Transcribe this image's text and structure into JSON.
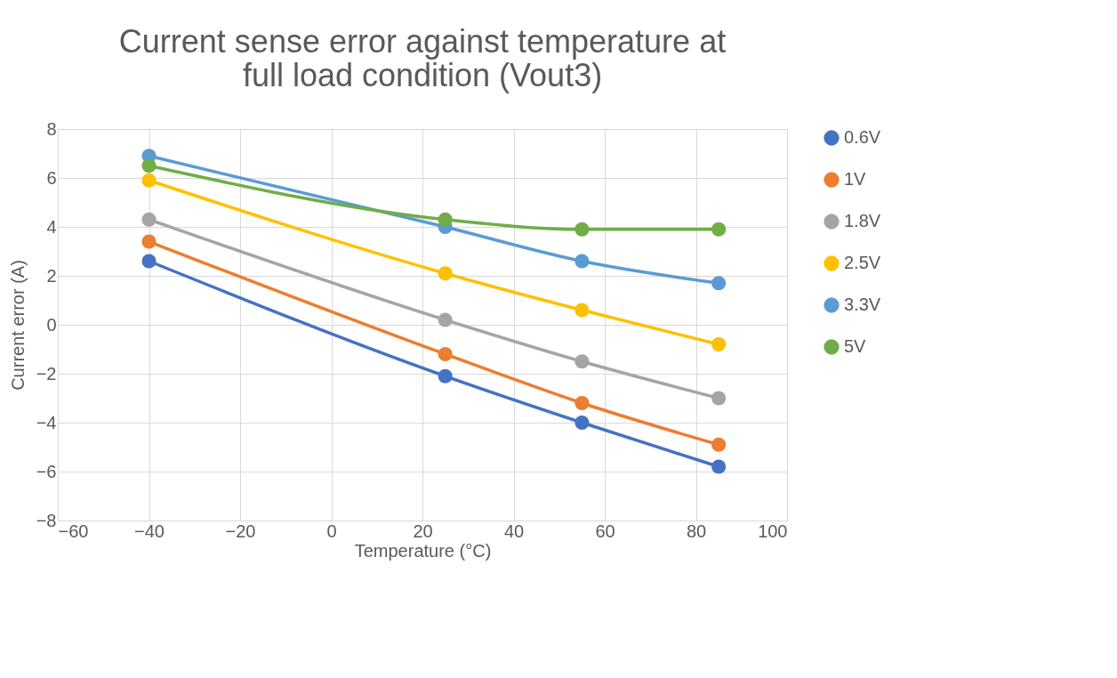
{
  "chart_data": {
    "type": "line",
    "title": [
      "Current sense error against temperature at",
      "full load condition (Vout3)"
    ],
    "xlabel": "Temperature (°C)",
    "ylabel": "Current error (A)",
    "x": [
      -40,
      25,
      55,
      85
    ],
    "series": [
      {
        "name": "0.6V",
        "color": "#4472c4",
        "values": [
          2.6,
          -2.1,
          -4.0,
          -5.8
        ]
      },
      {
        "name": "1V",
        "color": "#ed7d31",
        "values": [
          3.4,
          -1.2,
          -3.2,
          -4.9
        ]
      },
      {
        "name": "1.8V",
        "color": "#a5a5a5",
        "values": [
          4.3,
          0.2,
          -1.5,
          -3.0
        ]
      },
      {
        "name": "2.5V",
        "color": "#ffc000",
        "values": [
          5.9,
          2.1,
          0.6,
          -0.8
        ]
      },
      {
        "name": "3.3V",
        "color": "#5b9bd5",
        "values": [
          6.9,
          4.0,
          2.6,
          1.7
        ]
      },
      {
        "name": "5V",
        "color": "#70ad47",
        "values": [
          6.5,
          4.3,
          3.9,
          3.9
        ]
      }
    ],
    "xlim": [
      -60,
      100
    ],
    "xticks": [
      -60,
      -40,
      -20,
      0,
      20,
      40,
      60,
      80,
      100
    ],
    "ylim": [
      -8,
      8
    ],
    "yticks": [
      -8,
      -6,
      -4,
      -2,
      0,
      2,
      4,
      6,
      8
    ],
    "grid": true,
    "legend": "right",
    "marker": "circle",
    "line_style": "solid"
  }
}
